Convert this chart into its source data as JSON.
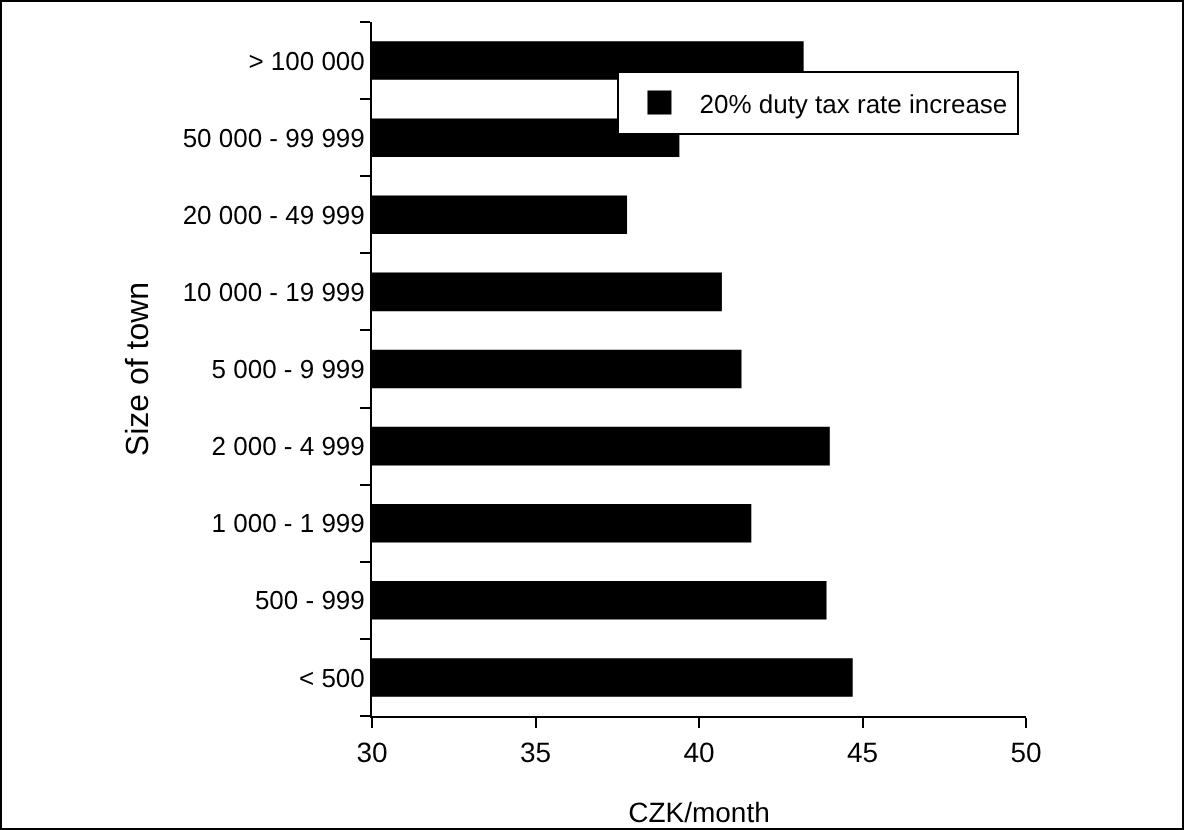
{
  "chart_data": {
    "type": "bar",
    "orientation": "horizontal",
    "xlabel": "CZK/month",
    "ylabel": "Size of town",
    "categories": [
      "> 100 000",
      "50 000 - 99 999",
      "20 000 - 49 999",
      "10 000 - 19 999",
      "5 000 - 9 999",
      "2 000 - 4 999",
      "1 000 - 1 999",
      "500 - 999",
      "< 500"
    ],
    "series": [
      {
        "name": "20% duty tax rate increase",
        "color": "#000000",
        "values": [
          43.2,
          39.4,
          37.8,
          40.7,
          41.3,
          44.0,
          41.6,
          43.9,
          44.7
        ]
      }
    ],
    "xlim": [
      30,
      50
    ],
    "xticks": [
      30,
      35,
      40,
      45,
      50
    ],
    "grid": false,
    "legend": "top right"
  }
}
